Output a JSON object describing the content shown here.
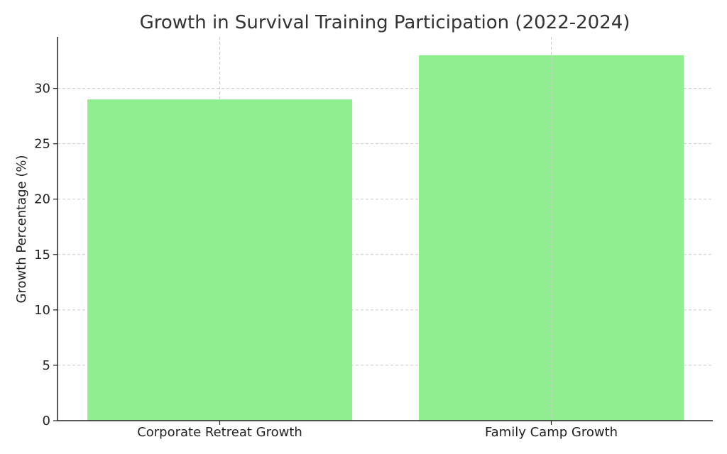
{
  "chart_data": {
    "type": "bar",
    "title": "Growth in Survival Training Participation (2022-2024)",
    "xlabel": "",
    "ylabel": "Growth Percentage (%)",
    "categories": [
      "Corporate Retreat Growth",
      "Family Camp Growth"
    ],
    "values": [
      29,
      33
    ],
    "ylim": [
      0,
      34.65
    ],
    "yticks": [
      0,
      5,
      10,
      15,
      20,
      25,
      30
    ],
    "grid": true,
    "bar_color": "#90EE90",
    "grid_color": "#cccccc"
  }
}
